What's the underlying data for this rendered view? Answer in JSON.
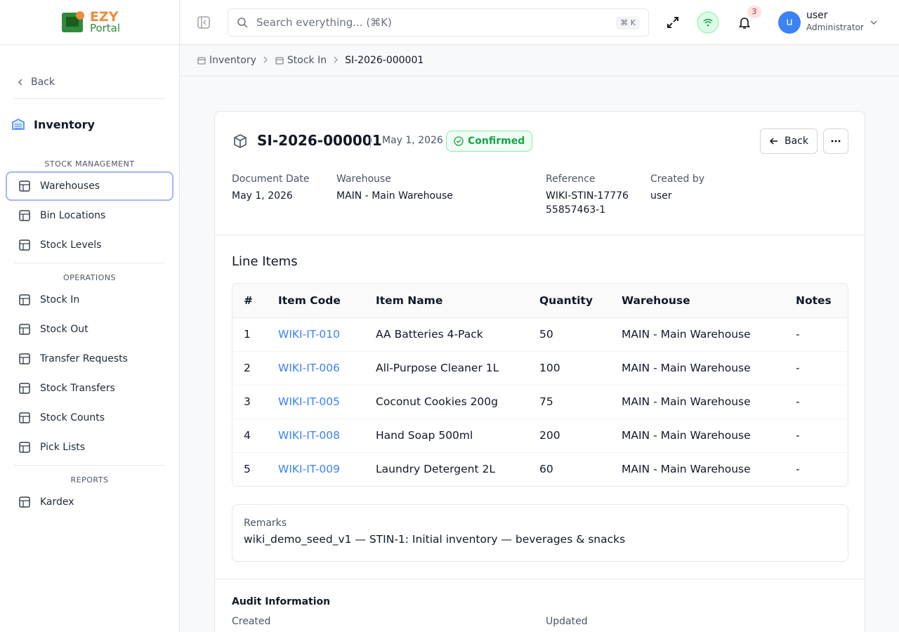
{
  "logo": {
    "brand": "EZY",
    "sub": "Portal"
  },
  "search": {
    "placeholder": "Search everything... (⌘K)",
    "shortcut": "⌘ K"
  },
  "notifications": {
    "count": 3
  },
  "user": {
    "initial": "u",
    "name": "user",
    "role": "Administrator"
  },
  "breadcrumb": [
    "Inventory",
    "Stock In",
    "SI-2026-000001"
  ],
  "sidebar": {
    "back": "Back",
    "module": "Inventory",
    "sections": [
      {
        "title": "STOCK MANAGEMENT",
        "items": [
          "Warehouses",
          "Bin Locations",
          "Stock Levels"
        ]
      },
      {
        "title": "OPERATIONS",
        "items": [
          "Stock In",
          "Stock Out",
          "Transfer Requests",
          "Stock Transfers",
          "Stock Counts",
          "Pick Lists"
        ]
      },
      {
        "title": "REPORTS",
        "items": [
          "Kardex"
        ]
      }
    ]
  },
  "document": {
    "number": "SI-2026-000001",
    "date": "May 1, 2026",
    "status": "Confirmed",
    "back": "Back",
    "fields": [
      {
        "label": "Document Date",
        "value": "May 1, 2026"
      },
      {
        "label": "Warehouse",
        "value": "MAIN - Main Warehouse"
      },
      {
        "label": "Reference",
        "value": "WIKI-STIN-1777655857463-1"
      },
      {
        "label": "Created by",
        "value": "user"
      }
    ]
  },
  "line_items": {
    "title": "Line Items",
    "columns": [
      "#",
      "Item Code",
      "Item Name",
      "Quantity",
      "Warehouse",
      "Notes"
    ],
    "rows": [
      [
        1,
        "WIKI-IT-010",
        "AA Batteries 4-Pack",
        50,
        "MAIN - Main Warehouse",
        "-"
      ],
      [
        2,
        "WIKI-IT-006",
        "All-Purpose Cleaner 1L",
        100,
        "MAIN - Main Warehouse",
        "-"
      ],
      [
        3,
        "WIKI-IT-005",
        "Coconut Cookies 200g",
        75,
        "MAIN - Main Warehouse",
        "-"
      ],
      [
        4,
        "WIKI-IT-008",
        "Hand Soap 500ml",
        200,
        "MAIN - Main Warehouse",
        "-"
      ],
      [
        5,
        "WIKI-IT-009",
        "Laundry Detergent 2L",
        60,
        "MAIN - Main Warehouse",
        "-"
      ]
    ]
  },
  "remarks": {
    "label": "Remarks",
    "text": "wiki_demo_seed_v1 — STIN-1: Initial inventory — beverages & snacks"
  },
  "audit": {
    "title": "Audit Information",
    "created": "Created",
    "updated": "Updated"
  }
}
